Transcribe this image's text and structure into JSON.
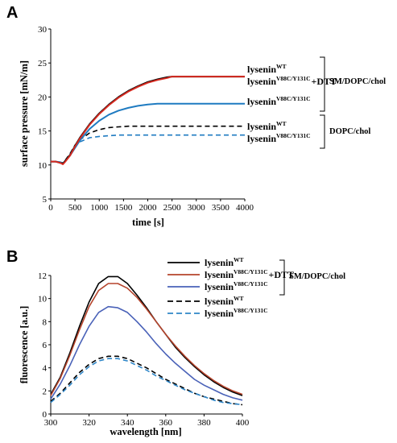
{
  "chart_data": [
    {
      "panel": "A",
      "type": "line",
      "xlabel": "time [s]",
      "ylabel": "surface pressure [mN/m]",
      "xlim": [
        0,
        4000
      ],
      "ylim": [
        5,
        30
      ],
      "xticks": [
        0,
        500,
        1000,
        1500,
        2000,
        2500,
        3000,
        3500,
        4000
      ],
      "yticks": [
        5,
        10,
        15,
        20,
        25,
        30
      ],
      "series": [
        {
          "name": "lysenin",
          "sup": "WT",
          "suffix": "",
          "color": "#000000",
          "dash": false,
          "x": [
            0,
            100,
            200,
            250,
            300,
            400,
            500,
            600,
            800,
            1000,
            1200,
            1400,
            1600,
            1800,
            2000,
            2200,
            2400,
            2500,
            3000,
            3500,
            4000
          ],
          "y": [
            10.5,
            10.5,
            10.3,
            10.2,
            10.6,
            11.5,
            12.8,
            14.0,
            16.0,
            17.6,
            18.9,
            20.0,
            20.9,
            21.6,
            22.2,
            22.6,
            22.9,
            23.0,
            23.0,
            23.0,
            23.0
          ]
        },
        {
          "name": "lysenin",
          "sup": "V88C/Y131C",
          "suffix": "+DTT",
          "color": "#d62a20",
          "dash": false,
          "x": [
            0,
            100,
            200,
            250,
            300,
            400,
            500,
            600,
            800,
            1000,
            1200,
            1400,
            1600,
            1800,
            2000,
            2200,
            2400,
            2500,
            3000,
            3500,
            4000
          ],
          "y": [
            10.5,
            10.5,
            10.3,
            10.1,
            10.5,
            11.4,
            12.7,
            13.9,
            15.9,
            17.5,
            18.8,
            19.9,
            20.8,
            21.5,
            22.1,
            22.5,
            22.8,
            23.0,
            23.0,
            23.0,
            23.0
          ]
        },
        {
          "name": "lysenin",
          "sup": "V88C/Y131C",
          "suffix": "",
          "color": "#1f7bc1",
          "dash": false,
          "x": [
            0,
            100,
            200,
            250,
            300,
            400,
            500,
            600,
            800,
            1000,
            1200,
            1400,
            1600,
            1800,
            2000,
            2200,
            2400,
            2500,
            3000,
            3500,
            4000
          ],
          "y": [
            10.5,
            10.5,
            10.4,
            10.2,
            10.6,
            11.4,
            12.5,
            13.6,
            15.3,
            16.5,
            17.4,
            18.0,
            18.4,
            18.7,
            18.9,
            19.0,
            19.0,
            19.0,
            19.0,
            19.0,
            19.0
          ]
        },
        {
          "name": "lysenin",
          "sup": "WT",
          "suffix": "",
          "color": "#000000",
          "dash": true,
          "x": [
            0,
            100,
            200,
            250,
            300,
            400,
            500,
            600,
            800,
            1000,
            1200,
            1400,
            1600,
            1800,
            2000,
            2500,
            3000,
            3500,
            4000
          ],
          "y": [
            10.5,
            10.5,
            10.4,
            10.3,
            10.7,
            11.7,
            12.9,
            13.7,
            14.7,
            15.2,
            15.5,
            15.6,
            15.7,
            15.7,
            15.7,
            15.7,
            15.7,
            15.7,
            15.7
          ]
        },
        {
          "name": "lysenin",
          "sup": "V88C/Y131C",
          "suffix": "",
          "color": "#1f7bc1",
          "dash": true,
          "x": [
            0,
            100,
            200,
            250,
            300,
            400,
            500,
            600,
            800,
            1000,
            1200,
            1400,
            1600,
            1800,
            2000,
            2500,
            3000,
            3500,
            4000
          ],
          "y": [
            10.5,
            10.5,
            10.3,
            10.2,
            10.6,
            11.6,
            12.8,
            13.4,
            14.0,
            14.2,
            14.3,
            14.4,
            14.4,
            14.4,
            14.4,
            14.4,
            14.4,
            14.4,
            14.4
          ]
        }
      ],
      "groups": [
        {
          "label": "SM/DOPC/chol",
          "series": [
            0,
            1,
            2
          ]
        },
        {
          "label": "DOPC/chol",
          "series": [
            3,
            4
          ]
        }
      ]
    },
    {
      "panel": "B",
      "type": "line",
      "xlabel": "wavelength [nm]",
      "ylabel": "fluorescence [a.u.]",
      "xlim": [
        300,
        400
      ],
      "ylim": [
        0,
        12
      ],
      "xticks": [
        300,
        320,
        340,
        360,
        380,
        400
      ],
      "yticks": [
        0,
        2,
        4,
        6,
        8,
        10,
        12
      ],
      "series": [
        {
          "name": "lysenin",
          "sup": "WT",
          "suffix": "",
          "color": "#000000",
          "dash": false,
          "x": [
            300,
            305,
            310,
            315,
            320,
            325,
            330,
            335,
            340,
            345,
            350,
            355,
            360,
            365,
            370,
            375,
            380,
            385,
            390,
            395,
            400
          ],
          "y": [
            1.7,
            3.2,
            5.3,
            7.6,
            9.7,
            11.3,
            11.9,
            11.9,
            11.3,
            10.3,
            9.2,
            8.0,
            6.9,
            5.8,
            4.9,
            4.1,
            3.4,
            2.8,
            2.3,
            1.9,
            1.6
          ]
        },
        {
          "name": "lysenin",
          "sup": "V88C/Y131C",
          "suffix": "+DTT",
          "color": "#b5442c",
          "dash": false,
          "x": [
            300,
            305,
            310,
            315,
            320,
            325,
            330,
            335,
            340,
            345,
            350,
            355,
            360,
            365,
            370,
            375,
            380,
            385,
            390,
            395,
            400
          ],
          "y": [
            1.6,
            3.1,
            5.1,
            7.3,
            9.3,
            10.7,
            11.3,
            11.3,
            10.9,
            10.1,
            9.1,
            8.0,
            6.9,
            5.9,
            5.0,
            4.2,
            3.5,
            2.9,
            2.4,
            2.0,
            1.7
          ]
        },
        {
          "name": "lysenin",
          "sup": "V88C/Y131C",
          "suffix": "",
          "color": "#4a62b8",
          "dash": false,
          "x": [
            300,
            305,
            310,
            315,
            320,
            325,
            330,
            335,
            340,
            345,
            350,
            355,
            360,
            365,
            370,
            375,
            380,
            385,
            390,
            395,
            400
          ],
          "y": [
            1.3,
            2.6,
            4.2,
            6.0,
            7.6,
            8.8,
            9.3,
            9.2,
            8.8,
            8.0,
            7.1,
            6.1,
            5.2,
            4.4,
            3.7,
            3.0,
            2.5,
            2.1,
            1.7,
            1.4,
            1.2
          ]
        },
        {
          "name": "lysenin",
          "sup": "WT",
          "suffix": "",
          "color": "#000000",
          "dash": true,
          "x": [
            300,
            305,
            310,
            315,
            320,
            325,
            330,
            335,
            340,
            345,
            350,
            355,
            360,
            365,
            370,
            375,
            380,
            385,
            390,
            395,
            400
          ],
          "y": [
            1.1,
            1.8,
            2.7,
            3.6,
            4.3,
            4.8,
            5.0,
            5.0,
            4.8,
            4.4,
            4.0,
            3.5,
            3.0,
            2.6,
            2.2,
            1.8,
            1.5,
            1.3,
            1.1,
            0.9,
            0.8
          ]
        },
        {
          "name": "lysenin",
          "sup": "V88C/Y131C",
          "suffix": "",
          "color": "#2e86c8",
          "dash": true,
          "x": [
            300,
            305,
            310,
            315,
            320,
            325,
            330,
            335,
            340,
            345,
            350,
            355,
            360,
            365,
            370,
            375,
            380,
            385,
            390,
            395,
            400
          ],
          "y": [
            1.0,
            1.7,
            2.5,
            3.4,
            4.1,
            4.6,
            4.8,
            4.8,
            4.6,
            4.2,
            3.8,
            3.3,
            2.9,
            2.5,
            2.1,
            1.8,
            1.5,
            1.2,
            1.0,
            0.9,
            0.8
          ]
        }
      ],
      "groups": [
        {
          "label": "SM/DOPC/chol",
          "series": [
            0,
            1,
            2
          ]
        }
      ]
    }
  ]
}
